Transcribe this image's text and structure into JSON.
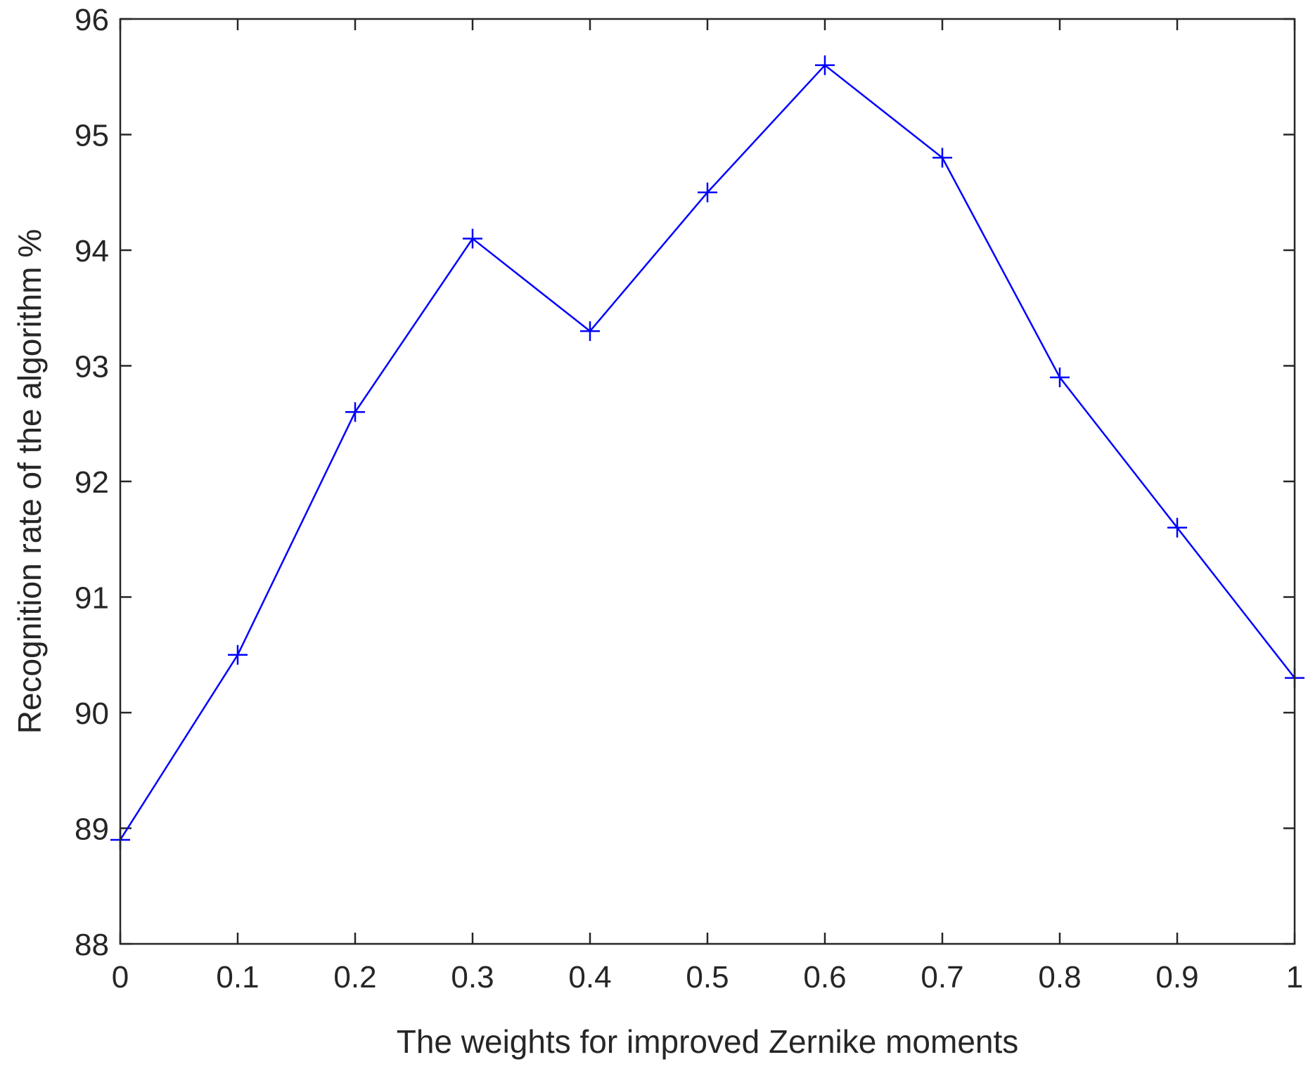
{
  "chart_data": {
    "type": "line",
    "title": "",
    "xlabel": "The weights for improved Zernike moments",
    "ylabel": "Recognition rate of the algorithm %",
    "xlim": [
      0,
      1
    ],
    "ylim": [
      88,
      96
    ],
    "x_ticks": [
      "0",
      "0.1",
      "0.2",
      "0.3",
      "0.4",
      "0.5",
      "0.6",
      "0.7",
      "0.8",
      "0.9",
      "1"
    ],
    "y_ticks": [
      "88",
      "89",
      "90",
      "91",
      "92",
      "93",
      "94",
      "95",
      "96"
    ],
    "grid": false,
    "series": [
      {
        "marker": "plus",
        "color": "#0000ff",
        "x": [
          0,
          0.1,
          0.2,
          0.3,
          0.4,
          0.5,
          0.6,
          0.7,
          0.8,
          0.9,
          1.0
        ],
        "y": [
          88.9,
          90.5,
          92.6,
          94.1,
          93.3,
          94.5,
          95.6,
          94.8,
          92.9,
          91.6,
          90.3
        ]
      }
    ]
  }
}
